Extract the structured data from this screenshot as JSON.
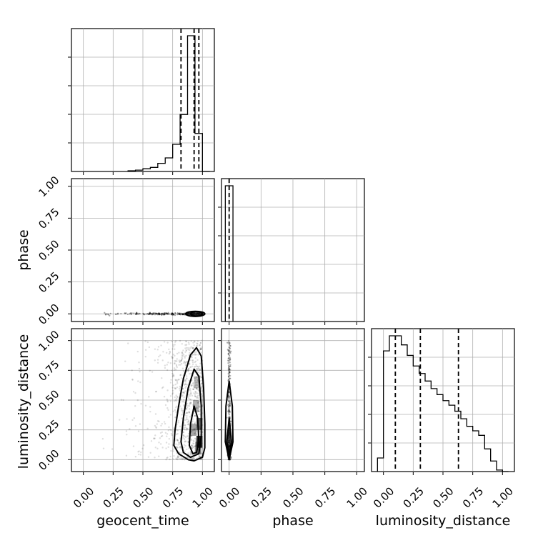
{
  "figure": {
    "type": "corner_plot",
    "parameters": [
      "geocent_time",
      "phase",
      "luminosity_distance"
    ],
    "tick_labels": [
      "0.00",
      "0.25",
      "0.50",
      "0.75",
      "1.00"
    ]
  },
  "chart_data": [
    {
      "type": "histogram",
      "panel": "geocent_time",
      "xlabel": "",
      "xlim": [
        -0.1,
        1.1
      ],
      "bins": [
        0.375,
        0.4375,
        0.5,
        0.5625,
        0.625,
        0.6875,
        0.75,
        0.8125,
        0.875,
        0.9375,
        1.0,
        1.0625
      ],
      "counts": [
        0.005,
        0.01,
        0.02,
        0.03,
        0.06,
        0.1,
        0.2,
        0.42,
        1.0,
        0.28,
        0
      ],
      "quantile_lines": [
        0.82,
        0.93,
        0.97
      ],
      "grid": true
    },
    {
      "type": "histogram",
      "panel": "phase",
      "xlabel": "phase",
      "xlim": [
        -0.06,
        1.06
      ],
      "bins": [
        -0.03,
        0.0,
        0.03
      ],
      "counts": [
        1.0,
        1.0
      ],
      "quantile_lines": [
        0.0
      ],
      "grid": true
    },
    {
      "type": "histogram",
      "panel": "luminosity_distance",
      "xlabel": "luminosity_distance",
      "xlim": [
        -0.1,
        1.1
      ],
      "bins": [
        -0.05,
        0.0,
        0.05,
        0.1,
        0.15,
        0.2,
        0.25,
        0.3,
        0.35,
        0.4,
        0.45,
        0.5,
        0.55,
        0.6,
        0.65,
        0.7,
        0.75,
        0.8,
        0.85,
        0.9,
        0.95,
        1.0,
        1.05
      ],
      "counts": [
        0.09,
        0.8,
        0.9,
        0.9,
        0.84,
        0.77,
        0.7,
        0.65,
        0.6,
        0.55,
        0.51,
        0.47,
        0.44,
        0.4,
        0.35,
        0.3,
        0.27,
        0.24,
        0.15,
        0.07,
        0.01,
        0
      ],
      "quantile_lines": [
        0.1,
        0.31,
        0.63
      ],
      "grid": true
    },
    {
      "type": "scatter_density",
      "panel": "geocent_time vs phase",
      "xlabel": "",
      "ylabel": "phase",
      "xlim": [
        -0.1,
        1.1
      ],
      "ylim": [
        -0.06,
        1.06
      ],
      "peak": [
        0.94,
        0.0
      ],
      "trail_x_range": [
        0.1,
        1.0
      ],
      "contours": [
        {
          "cx": 0.94,
          "cy": 0.0,
          "rx": 0.08,
          "ry": 0.02
        },
        {
          "cx": 0.95,
          "cy": 0.0,
          "rx": 0.05,
          "ry": 0.012
        }
      ],
      "grid": true
    },
    {
      "type": "scatter_density",
      "panel": "geocent_time vs luminosity_distance",
      "xlabel": "geocent_time",
      "ylabel": "luminosity_distance",
      "xlim": [
        -0.1,
        1.1
      ],
      "ylim": [
        -0.1,
        1.1
      ],
      "peak": [
        0.95,
        0.15
      ],
      "contour_levels": [
        [
          [
            0.88,
            0.0
          ],
          [
            0.8,
            0.05
          ],
          [
            0.76,
            0.12
          ],
          [
            0.77,
            0.25
          ],
          [
            0.8,
            0.45
          ],
          [
            0.84,
            0.68
          ],
          [
            0.9,
            0.88
          ],
          [
            0.95,
            0.94
          ],
          [
            0.99,
            0.87
          ],
          [
            1.01,
            0.6
          ],
          [
            1.02,
            0.3
          ],
          [
            1.02,
            0.1
          ],
          [
            1.0,
            0.02
          ],
          [
            0.93,
            -0.01
          ]
        ],
        [
          [
            0.9,
            0.02
          ],
          [
            0.84,
            0.06
          ],
          [
            0.82,
            0.15
          ],
          [
            0.84,
            0.35
          ],
          [
            0.88,
            0.6
          ],
          [
            0.93,
            0.76
          ],
          [
            0.97,
            0.7
          ],
          [
            0.99,
            0.45
          ],
          [
            0.99,
            0.2
          ],
          [
            0.97,
            0.05
          ]
        ],
        [
          [
            0.92,
            0.05
          ],
          [
            0.89,
            0.12
          ],
          [
            0.9,
            0.3
          ],
          [
            0.93,
            0.45
          ],
          [
            0.96,
            0.35
          ],
          [
            0.97,
            0.15
          ],
          [
            0.95,
            0.06
          ]
        ]
      ],
      "grid": true
    },
    {
      "type": "scatter_density",
      "panel": "phase vs luminosity_distance",
      "xlabel": "phase",
      "ylabel": "",
      "xlim": [
        -0.06,
        1.06
      ],
      "ylim": [
        -0.1,
        1.1
      ],
      "peak": [
        0.0,
        0.12
      ],
      "contour_levels": [
        [
          [
            0.0,
            0.0
          ],
          [
            -0.03,
            0.15
          ],
          [
            -0.025,
            0.45
          ],
          [
            0.0,
            0.66
          ],
          [
            0.025,
            0.45
          ],
          [
            0.03,
            0.15
          ]
        ],
        [
          [
            0.0,
            0.04
          ],
          [
            -0.018,
            0.15
          ],
          [
            0.0,
            0.35
          ],
          [
            0.018,
            0.15
          ]
        ]
      ],
      "grid": true
    }
  ]
}
